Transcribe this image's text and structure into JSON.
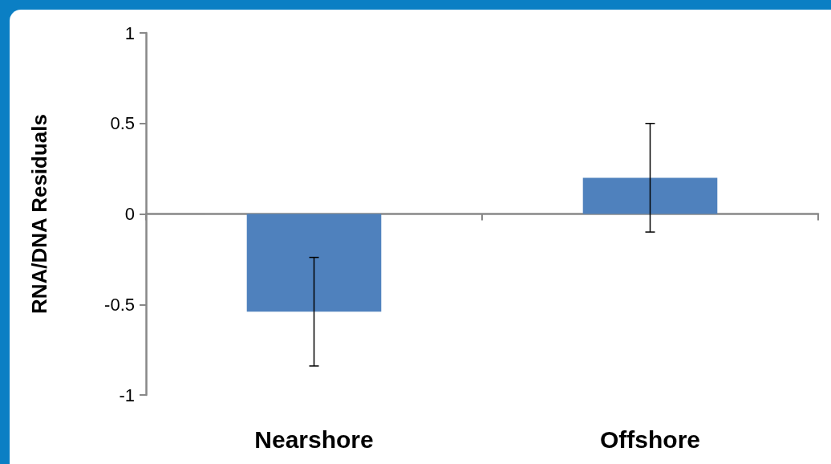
{
  "chart_data": {
    "type": "bar",
    "ylabel": "RNA/DNA Residuals",
    "categories": [
      "Nearshore",
      "Offshore"
    ],
    "values": [
      -0.54,
      0.2
    ],
    "errors": [
      0.3,
      0.3
    ],
    "color": "#4f81bd",
    "ylim": [
      -1,
      1
    ],
    "yticks": [
      -1,
      -0.5,
      0,
      0.5,
      1
    ]
  }
}
